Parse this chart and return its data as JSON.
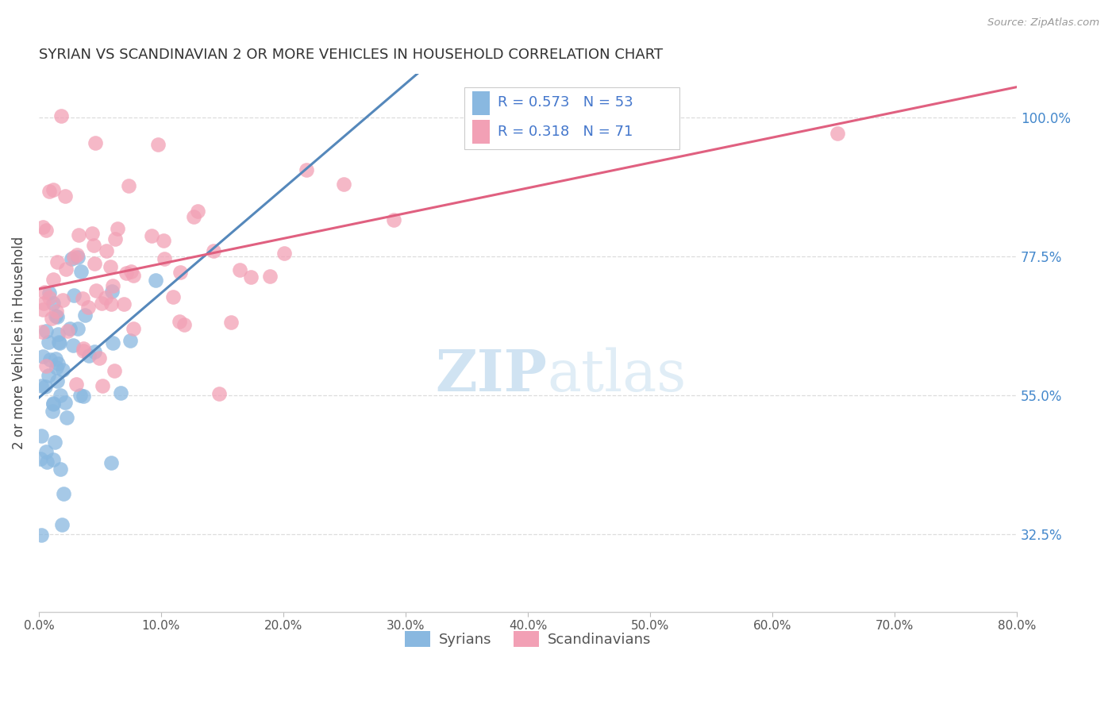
{
  "title": "SYRIAN VS SCANDINAVIAN 2 OR MORE VEHICLES IN HOUSEHOLD CORRELATION CHART",
  "source": "Source: ZipAtlas.com",
  "ylabel": "2 or more Vehicles in Household",
  "ytick_labels": [
    "32.5%",
    "55.0%",
    "77.5%",
    "100.0%"
  ],
  "ytick_values": [
    32.5,
    55.0,
    77.5,
    100.0
  ],
  "xlim": [
    0.0,
    80.0
  ],
  "ylim": [
    20.0,
    107.0
  ],
  "blue_color": "#89b8e0",
  "pink_color": "#f2a0b5",
  "blue_line_color": "#5588bb",
  "pink_line_color": "#e06080",
  "legend_R_color": "#4477cc",
  "background_color": "#ffffff",
  "grid_color": "#dddddd",
  "legend_text_1": "R = 0.573   N = 53",
  "legend_text_2": "R = 0.318   N = 71",
  "zipatlas_color": "#d0e4f0",
  "zipatlas_text": "ZIPatlas"
}
